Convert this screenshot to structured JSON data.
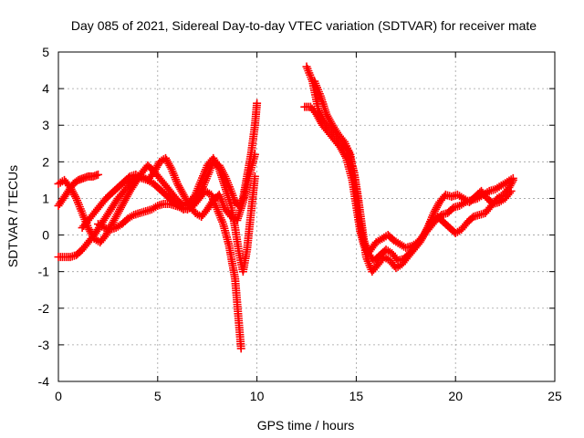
{
  "chart_data": {
    "type": "scatter",
    "title": "Day 085 of 2021, Sidereal Day-to-day VTEC variation (SDTVAR) for receiver mate",
    "xlabel": "GPS time / hours",
    "ylabel": "SDTVAR / TECUs",
    "xlim": [
      0,
      25
    ],
    "ylim": [
      -4,
      5
    ],
    "xticks": [
      0,
      5,
      10,
      15,
      20,
      25
    ],
    "yticks": [
      -4,
      -3,
      -2,
      -1,
      0,
      1,
      2,
      3,
      4,
      5
    ],
    "grid": true,
    "marker": "+",
    "color": "#ff0000",
    "series": [
      {
        "name": "trace-a",
        "x": [
          0.0,
          0.3,
          0.6,
          0.9,
          1.2,
          1.5,
          1.8,
          2.1,
          2.4,
          2.7,
          3.0,
          3.3,
          3.6,
          3.9,
          4.2,
          4.5,
          4.8,
          5.1,
          5.4,
          5.7,
          6.0,
          6.3,
          6.6,
          6.9,
          7.2,
          7.5,
          7.8,
          8.1,
          8.4,
          8.7,
          8.9,
          9.1,
          9.3,
          9.5,
          9.7,
          9.9,
          10.0
        ],
        "y": [
          -0.6,
          -0.6,
          -0.6,
          -0.55,
          -0.4,
          -0.2,
          0.0,
          0.25,
          0.5,
          0.75,
          1.0,
          1.2,
          1.4,
          1.55,
          1.6,
          1.5,
          1.4,
          1.25,
          1.1,
          0.95,
          0.8,
          0.7,
          0.75,
          0.9,
          1.2,
          1.6,
          2.0,
          1.9,
          1.6,
          1.2,
          0.9,
          0.8,
          1.0,
          1.6,
          2.2,
          3.0,
          3.6
        ]
      },
      {
        "name": "trace-b",
        "x": [
          0.0,
          0.3,
          0.6,
          0.9,
          1.2,
          1.5,
          1.8,
          2.1,
          2.4,
          2.7,
          3.0,
          3.3,
          3.6,
          3.9,
          4.2,
          4.5,
          4.8,
          5.1,
          5.4,
          5.7,
          6.0,
          6.3,
          6.6,
          6.9,
          7.2,
          7.5,
          7.8,
          8.1,
          8.4,
          8.7,
          8.9,
          9.1,
          9.3,
          9.5,
          9.7,
          9.9
        ],
        "y": [
          1.4,
          1.5,
          1.3,
          1.0,
          0.6,
          0.2,
          -0.1,
          -0.2,
          0.0,
          0.3,
          0.6,
          0.9,
          1.2,
          1.45,
          1.7,
          1.9,
          1.75,
          1.55,
          1.35,
          1.15,
          0.95,
          0.8,
          0.9,
          1.1,
          1.5,
          1.9,
          2.1,
          1.8,
          1.3,
          0.8,
          0.2,
          -0.5,
          -1.0,
          -0.4,
          0.6,
          1.6
        ]
      },
      {
        "name": "trace-c",
        "x": [
          0.0,
          0.25,
          0.5,
          0.75,
          1.0,
          1.25,
          1.5,
          1.75,
          2.0
        ],
        "y": [
          0.8,
          1.0,
          1.2,
          1.4,
          1.5,
          1.55,
          1.6,
          1.6,
          1.65
        ]
      },
      {
        "name": "trace-d",
        "x": [
          1.2,
          1.5,
          1.8,
          2.1,
          2.4,
          2.7,
          3.0,
          3.3,
          3.6,
          3.9,
          4.2,
          4.5,
          4.8,
          5.1,
          5.4,
          5.7,
          6.0,
          6.3,
          6.6,
          6.9,
          7.2,
          7.5,
          7.8,
          8.1,
          8.4,
          8.7,
          9.0,
          9.3,
          9.6,
          9.9
        ],
        "y": [
          0.2,
          0.4,
          0.6,
          0.8,
          1.0,
          1.15,
          1.3,
          1.45,
          1.6,
          1.65,
          1.55,
          1.5,
          1.7,
          2.0,
          2.1,
          1.8,
          1.4,
          1.1,
          0.8,
          0.6,
          0.5,
          0.7,
          0.95,
          1.1,
          0.7,
          0.5,
          0.4,
          0.9,
          1.6,
          2.2
        ]
      },
      {
        "name": "trace-e",
        "x": [
          2.0,
          2.3,
          2.6,
          2.9,
          3.2,
          3.5,
          3.8,
          4.1,
          4.4,
          4.7,
          5.0,
          5.3,
          5.6,
          5.9,
          6.2,
          6.5,
          6.8,
          7.1,
          7.4,
          7.7,
          8.0,
          8.3,
          8.6,
          8.9,
          9.2
        ],
        "y": [
          0.3,
          0.2,
          0.15,
          0.2,
          0.3,
          0.45,
          0.55,
          0.6,
          0.65,
          0.7,
          0.8,
          0.85,
          0.85,
          0.8,
          0.75,
          0.7,
          0.8,
          1.0,
          1.2,
          1.1,
          0.7,
          0.3,
          -0.3,
          -1.2,
          -3.1
        ]
      },
      {
        "name": "trace-f",
        "x": [
          12.4,
          12.7,
          13.0,
          13.3,
          13.6,
          13.9,
          14.2,
          14.5,
          14.8,
          15.0,
          15.2,
          15.4,
          15.6,
          15.8,
          16.0,
          16.3,
          16.6,
          16.9,
          17.2,
          17.5,
          17.8,
          18.1,
          18.4,
          18.7,
          19.0,
          19.3,
          19.6,
          19.9,
          20.2,
          20.5,
          20.8,
          21.1,
          21.4,
          21.7,
          22.0,
          22.3,
          22.6,
          22.9
        ],
        "y": [
          3.5,
          3.5,
          3.3,
          3.0,
          2.8,
          2.6,
          2.4,
          2.1,
          1.5,
          0.8,
          0.1,
          -0.3,
          -0.5,
          -0.35,
          -0.2,
          -0.1,
          0.0,
          -0.15,
          -0.25,
          -0.35,
          -0.3,
          -0.2,
          0.0,
          0.2,
          0.4,
          0.55,
          0.6,
          0.75,
          0.8,
          0.9,
          0.95,
          1.0,
          1.1,
          1.2,
          1.25,
          1.35,
          1.45,
          1.55
        ]
      },
      {
        "name": "trace-g",
        "x": [
          12.5,
          12.8,
          13.1,
          13.4,
          13.7,
          14.0,
          14.3,
          14.6,
          14.9,
          15.1,
          15.3,
          15.5,
          15.8,
          16.1,
          16.4,
          16.7,
          17.0,
          17.3,
          17.6,
          17.9,
          18.2,
          18.5,
          18.8,
          19.1,
          19.4,
          19.7,
          20.0,
          20.3,
          20.6,
          20.9,
          21.2,
          21.5,
          21.8,
          22.1,
          22.4,
          22.7,
          22.9
        ],
        "y": [
          4.6,
          4.2,
          3.4,
          3.1,
          2.9,
          2.7,
          2.5,
          2.3,
          1.7,
          1.0,
          0.2,
          -0.6,
          -1.0,
          -0.8,
          -0.6,
          -0.7,
          -0.9,
          -0.8,
          -0.6,
          -0.4,
          -0.2,
          0.1,
          0.4,
          0.5,
          0.35,
          0.2,
          0.05,
          0.15,
          0.35,
          0.5,
          0.55,
          0.6,
          0.8,
          1.0,
          1.1,
          1.3,
          1.5
        ]
      },
      {
        "name": "trace-h",
        "x": [
          12.9,
          13.2,
          13.5,
          13.8,
          14.1,
          14.4,
          14.7,
          15.0,
          15.3,
          15.6,
          15.9,
          16.2,
          16.5,
          16.8,
          17.1,
          17.4,
          17.7,
          18.0,
          18.3,
          18.6,
          18.9,
          19.2,
          19.5,
          19.8,
          20.1,
          20.4,
          20.7,
          21.0,
          21.3,
          21.6,
          21.9,
          22.2,
          22.5,
          22.8
        ],
        "y": [
          4.2,
          3.8,
          3.3,
          3.0,
          2.75,
          2.55,
          2.2,
          1.2,
          0.0,
          -0.5,
          -0.7,
          -0.55,
          -0.4,
          -0.5,
          -0.7,
          -0.65,
          -0.5,
          -0.3,
          -0.1,
          0.2,
          0.6,
          0.9,
          1.1,
          1.05,
          1.1,
          1.0,
          0.9,
          1.05,
          1.2,
          1.0,
          0.85,
          0.9,
          1.0,
          1.2
        ]
      }
    ]
  }
}
